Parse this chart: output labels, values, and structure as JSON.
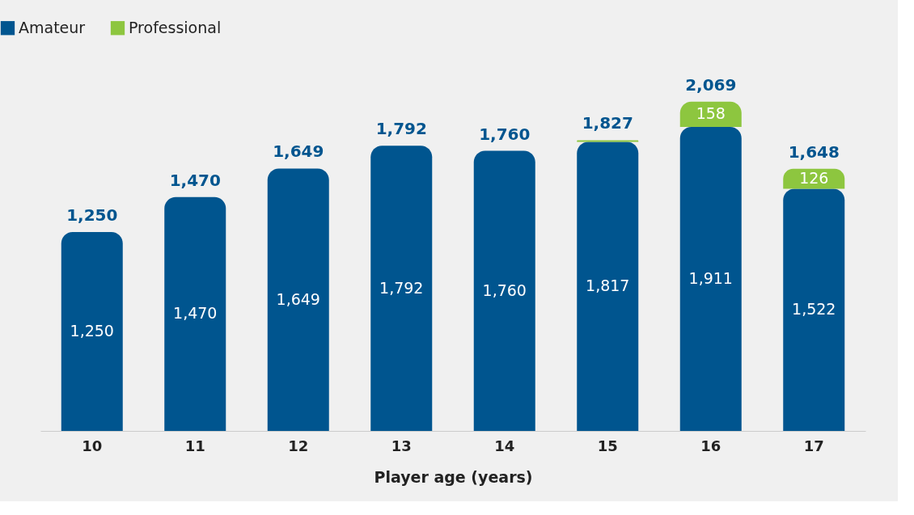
{
  "chart_data": {
    "type": "bar",
    "stacked": true,
    "xlabel": "Player age (years)",
    "categories": [
      "10",
      "11",
      "12",
      "13",
      "14",
      "15",
      "16",
      "17"
    ],
    "series": [
      {
        "name": "Amateur",
        "color": "#00558f",
        "values": [
          1250,
          1470,
          1649,
          1792,
          1760,
          1817,
          1911,
          1522
        ],
        "value_labels": [
          "1,250",
          "1,470",
          "1,649",
          "1,792",
          "1,760",
          "1,817",
          "1,911",
          "1,522"
        ]
      },
      {
        "name": "Professional",
        "color": "#8dc63f",
        "values": [
          null,
          null,
          null,
          null,
          null,
          10,
          158,
          126
        ],
        "value_labels": [
          null,
          null,
          null,
          null,
          null,
          null,
          "158",
          "126"
        ]
      }
    ],
    "totals": [
      "1,250",
      "1,470",
      "1,649",
      "1,792",
      "1,760",
      "1,827",
      "2,069",
      "1,648"
    ],
    "legend": "top left",
    "grid": false,
    "tick_labels": "x"
  }
}
